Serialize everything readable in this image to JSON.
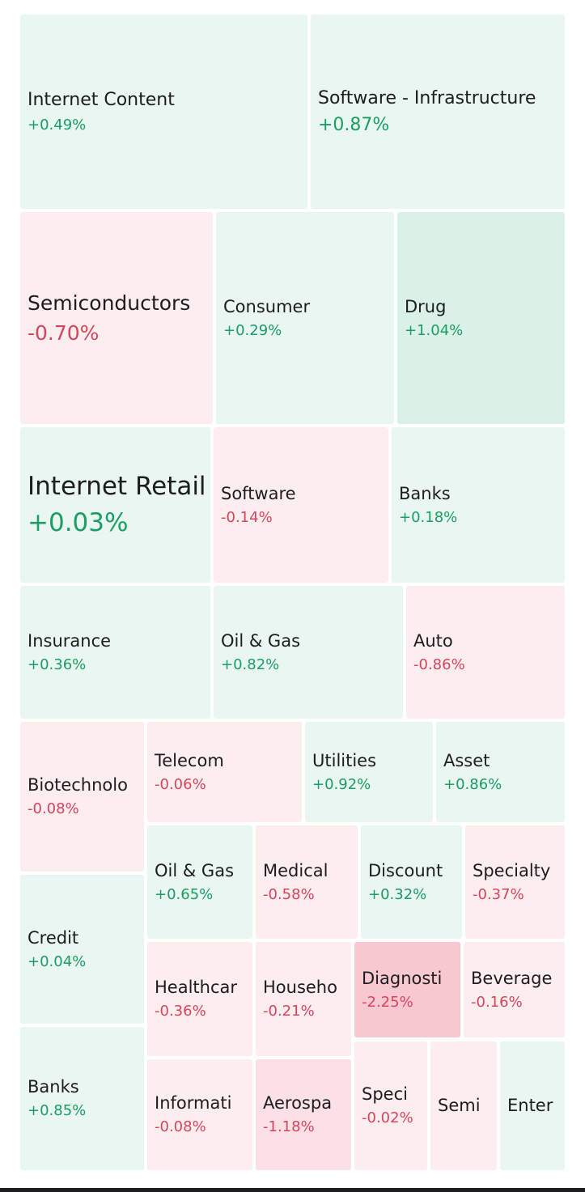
{
  "colors": {
    "up_text": "#1a9e63",
    "down_text": "#d6455d",
    "up_light": "#e9f6f1",
    "up_medium": "#daf1e8",
    "down_light": "#fcedef",
    "down_medium": "#fbe0e5",
    "down_strong": "#f8c8d1"
  },
  "tiles": [
    {
      "name": "Internet Content",
      "change": "+0.49%",
      "dir": "up",
      "shade": "up_light"
    },
    {
      "name": "Software - Infrastructure",
      "change": "+0.87%",
      "dir": "up",
      "shade": "up_light"
    },
    {
      "name": "Semiconductors",
      "change": "-0.70%",
      "dir": "down",
      "shade": "down_light"
    },
    {
      "name": "Consumer",
      "change": "+0.29%",
      "dir": "up",
      "shade": "up_light"
    },
    {
      "name": "Drug",
      "change": "+1.04%",
      "dir": "up",
      "shade": "up_medium"
    },
    {
      "name": "Internet Retail",
      "change": "+0.03%",
      "dir": "up",
      "shade": "up_light"
    },
    {
      "name": "Software",
      "change": "-0.14%",
      "dir": "down",
      "shade": "down_light"
    },
    {
      "name": "Banks",
      "change": "+0.18%",
      "dir": "up",
      "shade": "up_light"
    },
    {
      "name": "Insurance",
      "change": "+0.36%",
      "dir": "up",
      "shade": "up_light"
    },
    {
      "name": "Oil & Gas",
      "change": "+0.82%",
      "dir": "up",
      "shade": "up_light"
    },
    {
      "name": "Auto",
      "change": "-0.86%",
      "dir": "down",
      "shade": "down_light"
    },
    {
      "name": "Biotechnolo",
      "change": "-0.08%",
      "dir": "down",
      "shade": "down_light"
    },
    {
      "name": "Telecom",
      "change": "-0.06%",
      "dir": "down",
      "shade": "down_light"
    },
    {
      "name": "Utilities",
      "change": "+0.92%",
      "dir": "up",
      "shade": "up_light"
    },
    {
      "name": "Asset",
      "change": "+0.86%",
      "dir": "up",
      "shade": "up_light"
    },
    {
      "name": "Credit",
      "change": "+0.04%",
      "dir": "up",
      "shade": "up_light"
    },
    {
      "name": "Oil & Gas",
      "change": "+0.65%",
      "dir": "up",
      "shade": "up_light"
    },
    {
      "name": "Medical",
      "change": "-0.58%",
      "dir": "down",
      "shade": "down_light"
    },
    {
      "name": "Discount",
      "change": "+0.32%",
      "dir": "up",
      "shade": "up_light"
    },
    {
      "name": "Specialty",
      "change": "-0.37%",
      "dir": "down",
      "shade": "down_light"
    },
    {
      "name": "Healthcar",
      "change": "-0.36%",
      "dir": "down",
      "shade": "down_light"
    },
    {
      "name": "Househo",
      "change": "-0.21%",
      "dir": "down",
      "shade": "down_light"
    },
    {
      "name": "Diagnosti",
      "change": "-2.25%",
      "dir": "down",
      "shade": "down_strong"
    },
    {
      "name": "Beverage",
      "change": "-0.16%",
      "dir": "down",
      "shade": "down_light"
    },
    {
      "name": "Banks",
      "change": "+0.85%",
      "dir": "up",
      "shade": "up_light"
    },
    {
      "name": "Informati",
      "change": "-0.08%",
      "dir": "down",
      "shade": "down_light"
    },
    {
      "name": "Aerospa",
      "change": "-1.18%",
      "dir": "down",
      "shade": "down_medium"
    },
    {
      "name": "Speci",
      "change": "-0.02%",
      "dir": "down",
      "shade": "down_light"
    },
    {
      "name": "Semi",
      "change": "",
      "dir": "down",
      "shade": "down_light"
    },
    {
      "name": "Enter",
      "change": "",
      "dir": "up",
      "shade": "up_light"
    }
  ]
}
